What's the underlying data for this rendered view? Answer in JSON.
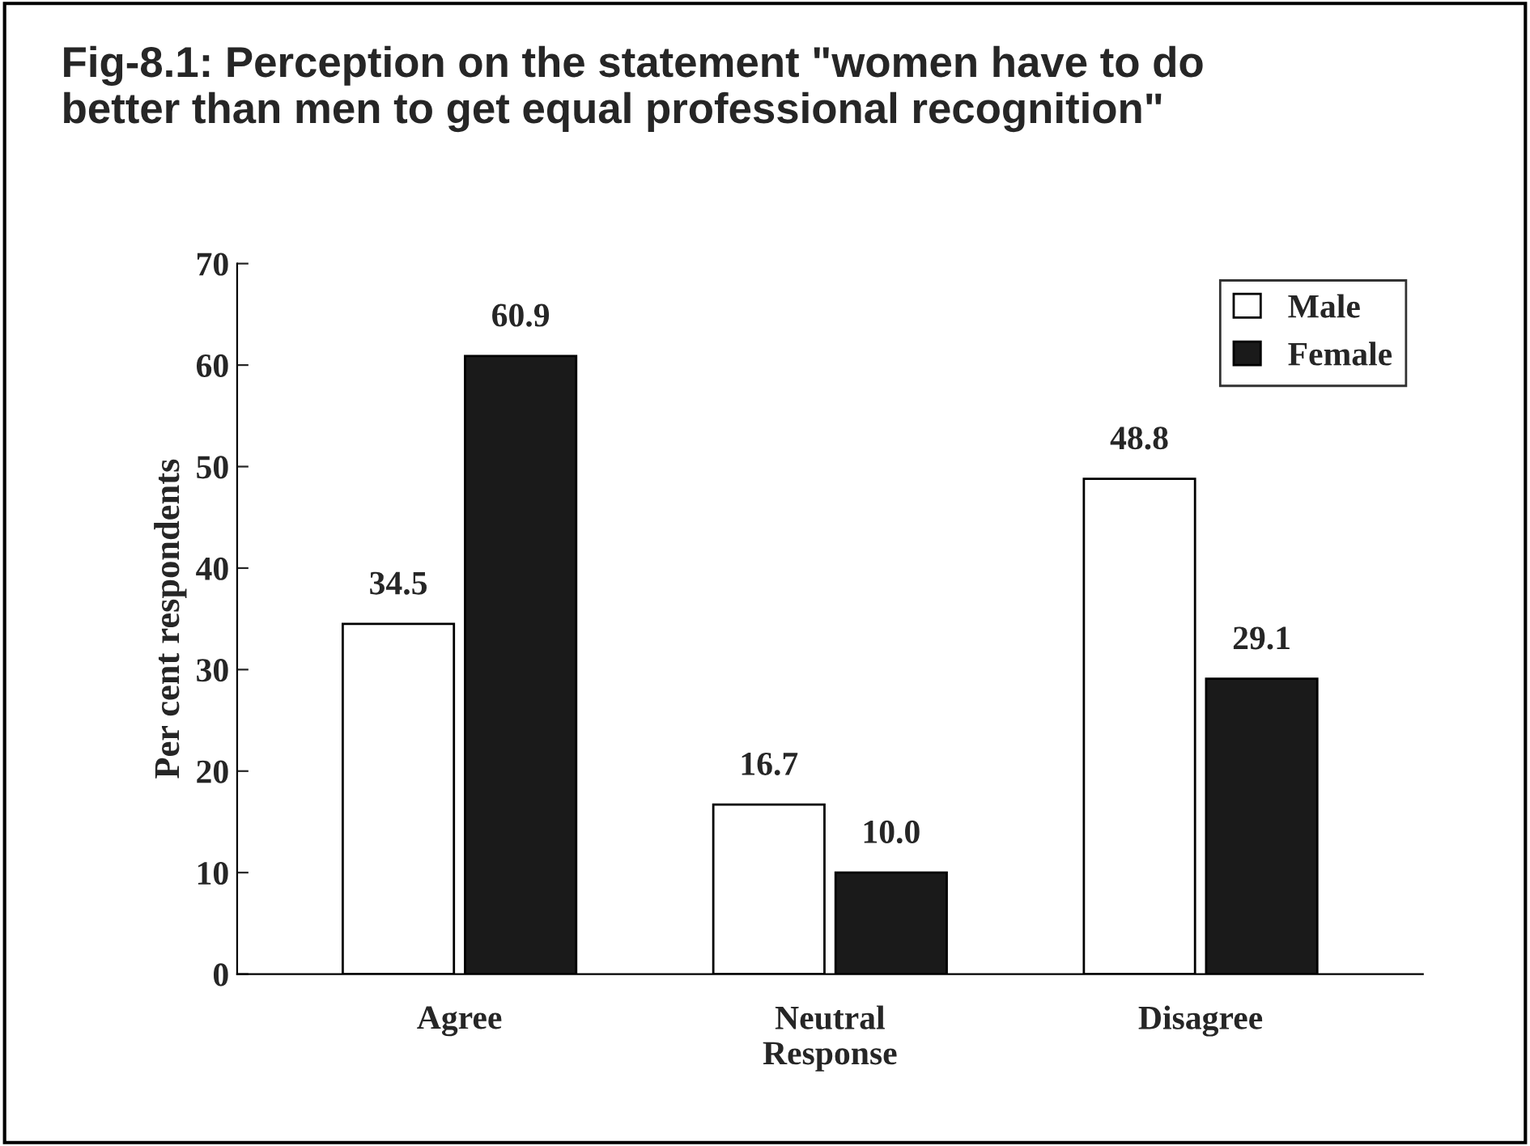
{
  "chart_data": {
    "type": "bar",
    "title": "Fig-8.1: Perception on the statement \"women have to do\nbetter than men to get equal professional recognition\"",
    "ylabel": "Per cent respondents",
    "categories": [
      "Agree",
      "Neutral\nResponse",
      "Disagree"
    ],
    "series": [
      {
        "name": "Male",
        "color": "#ffffff",
        "values": [
          34.5,
          16.7,
          48.8
        ],
        "value_labels": [
          "34.5",
          "16.7",
          "48.8"
        ]
      },
      {
        "name": "Female",
        "color": "#1a1a1a",
        "values": [
          60.9,
          10.0,
          29.1
        ],
        "value_labels": [
          "60.9",
          "10.0",
          "29.1"
        ]
      }
    ],
    "ylim": [
      0,
      70
    ],
    "yticks": [
      0,
      10,
      20,
      30,
      40,
      50,
      60,
      70
    ],
    "grid": false,
    "legend": "top right"
  }
}
